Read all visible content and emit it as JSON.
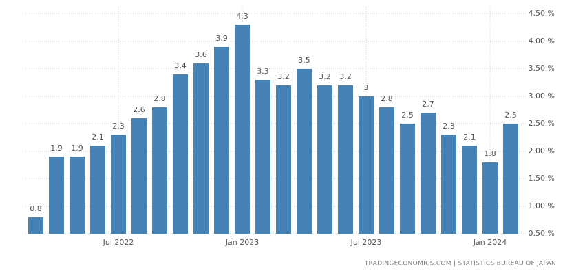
{
  "chart_data": {
    "type": "bar",
    "categories": [
      null,
      null,
      null,
      null,
      "Jul 2022",
      null,
      null,
      null,
      null,
      null,
      "Jan 2023",
      null,
      null,
      null,
      null,
      null,
      "Jul 2023",
      null,
      null,
      null,
      null,
      null,
      "Jan 2024",
      null
    ],
    "values": [
      0.8,
      1.9,
      1.9,
      2.1,
      2.3,
      2.6,
      2.8,
      3.4,
      3.6,
      3.9,
      4.3,
      3.3,
      3.2,
      3.5,
      3.2,
      3.2,
      3,
      2.8,
      2.5,
      2.7,
      2.3,
      2.1,
      1.8,
      2.5
    ],
    "color": "#4682b4",
    "ylim": [
      0.5,
      4.5
    ],
    "yticks": [
      {
        "value": 0.5,
        "label": "0.50 %"
      },
      {
        "value": 1.0,
        "label": "1.00 %"
      },
      {
        "value": 1.5,
        "label": "1.50 %"
      },
      {
        "value": 2.0,
        "label": "2.00 %"
      },
      {
        "value": 2.5,
        "label": "2.50 %"
      },
      {
        "value": 3.0,
        "label": "3.00 %"
      },
      {
        "value": 3.5,
        "label": "3.50 %"
      },
      {
        "value": 4.0,
        "label": "4.00 %"
      },
      {
        "value": 4.5,
        "label": "4.50 %"
      }
    ],
    "grid": true,
    "source": "TRADINGECONOMICS.COM | STATISTICS BUREAU OF JAPAN"
  }
}
